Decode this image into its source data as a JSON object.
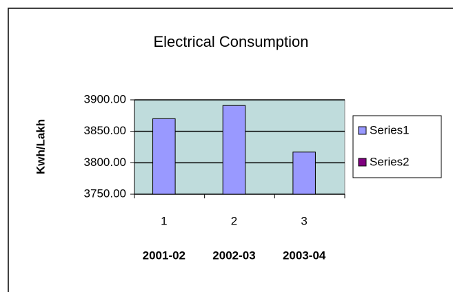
{
  "chart_data": {
    "type": "bar",
    "title": "Electrical Consumption",
    "y_label": "Kwh/Lakh",
    "categories": [
      "1",
      "2",
      "3"
    ],
    "subcategories": [
      "2001-02",
      "2002-03",
      "2003-04"
    ],
    "series": [
      {
        "name": "Series1",
        "color": "#9999ff",
        "values": [
          3870,
          3891,
          3817
        ]
      },
      {
        "name": "Series2",
        "color": "#800080",
        "values": [
          null,
          null,
          null
        ]
      }
    ],
    "ylim": [
      3750,
      3900
    ],
    "yticks": [
      {
        "value": 3750,
        "label": "3750.00"
      },
      {
        "value": 3800,
        "label": "3800.00"
      },
      {
        "value": 3850,
        "label": "3850.00"
      },
      {
        "value": 3900,
        "label": "3900.00"
      }
    ],
    "grid": true,
    "plot_background": "#bfdcdc",
    "legend": "right"
  }
}
